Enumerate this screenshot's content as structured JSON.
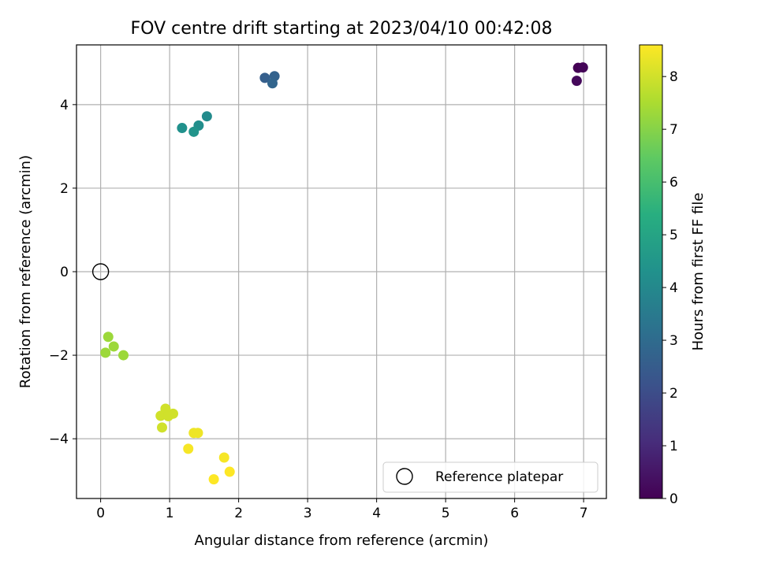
{
  "chart_data": {
    "type": "scatter",
    "title": "FOV centre drift starting at 2023/04/10 00:42:08",
    "xlabel": "Angular distance from reference (arcmin)",
    "ylabel": "Rotation from reference (arcmin)",
    "xlim": [
      -0.35,
      7.33
    ],
    "ylim": [
      -5.43,
      5.43
    ],
    "xticks": [
      0,
      1,
      2,
      3,
      4,
      5,
      6,
      7
    ],
    "yticks": [
      -4,
      -2,
      0,
      2,
      4
    ],
    "grid": true,
    "legend": {
      "position": "lower-right",
      "entries": [
        "Reference platepar"
      ]
    },
    "reference_point": {
      "x": 0,
      "y": 0,
      "label": "Reference platepar"
    },
    "colorbar": {
      "label": "Hours from first FF file",
      "colormap": "viridis",
      "range": [
        0,
        8.6
      ],
      "ticks": [
        0,
        1,
        2,
        3,
        4,
        5,
        6,
        7,
        8
      ]
    },
    "points": [
      {
        "x": 6.92,
        "y": 4.88,
        "hours": 0.0
      },
      {
        "x": 6.99,
        "y": 4.89,
        "hours": 0.1
      },
      {
        "x": 6.9,
        "y": 4.57,
        "hours": 0.2
      },
      {
        "x": 2.38,
        "y": 4.64,
        "hours": 2.6
      },
      {
        "x": 2.52,
        "y": 4.68,
        "hours": 2.7
      },
      {
        "x": 2.49,
        "y": 4.51,
        "hours": 2.8
      },
      {
        "x": 1.54,
        "y": 3.72,
        "hours": 4.1
      },
      {
        "x": 1.42,
        "y": 3.5,
        "hours": 4.2
      },
      {
        "x": 1.18,
        "y": 3.44,
        "hours": 4.3
      },
      {
        "x": 1.35,
        "y": 3.35,
        "hours": 4.4
      },
      {
        "x": 0.11,
        "y": -1.56,
        "hours": 7.3
      },
      {
        "x": 0.19,
        "y": -1.79,
        "hours": 7.3
      },
      {
        "x": 0.07,
        "y": -1.94,
        "hours": 7.3
      },
      {
        "x": 0.33,
        "y": -2.0,
        "hours": 7.3
      },
      {
        "x": 0.94,
        "y": -3.28,
        "hours": 8.0
      },
      {
        "x": 0.87,
        "y": -3.45,
        "hours": 8.0
      },
      {
        "x": 1.05,
        "y": -3.4,
        "hours": 8.0
      },
      {
        "x": 0.98,
        "y": -3.46,
        "hours": 8.0
      },
      {
        "x": 0.89,
        "y": -3.73,
        "hours": 8.0
      },
      {
        "x": 1.35,
        "y": -3.86,
        "hours": 8.4
      },
      {
        "x": 1.41,
        "y": -3.86,
        "hours": 8.4
      },
      {
        "x": 1.27,
        "y": -4.24,
        "hours": 8.5
      },
      {
        "x": 1.79,
        "y": -4.45,
        "hours": 8.5
      },
      {
        "x": 1.87,
        "y": -4.79,
        "hours": 8.6
      },
      {
        "x": 1.64,
        "y": -4.97,
        "hours": 8.6
      }
    ]
  }
}
